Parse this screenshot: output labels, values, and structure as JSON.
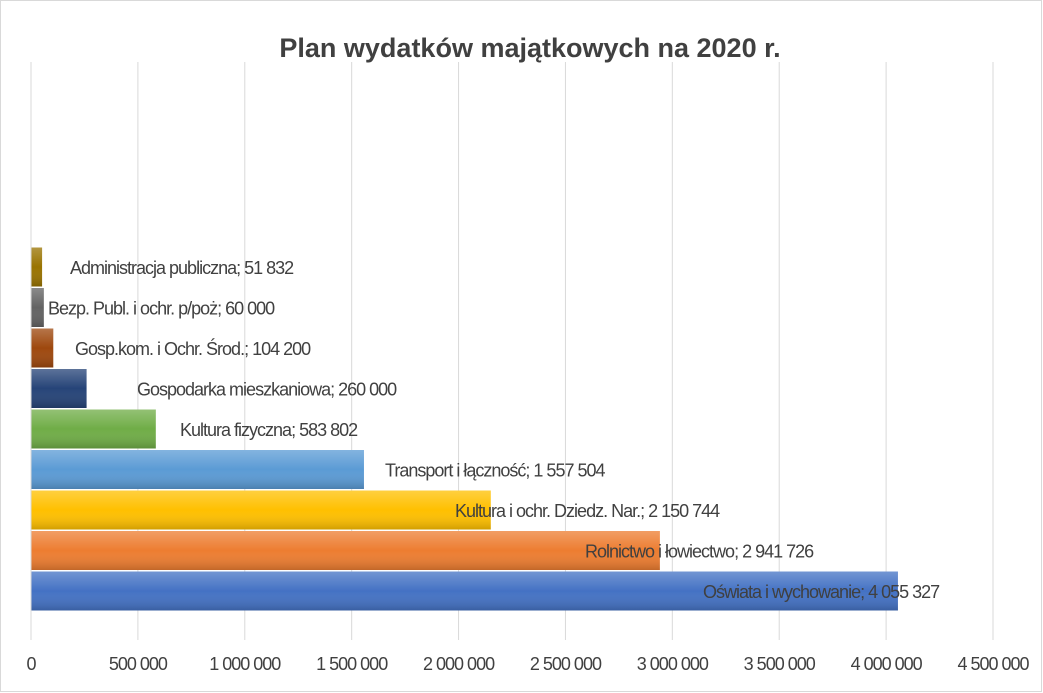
{
  "chart_data": {
    "type": "barh",
    "title": "Plan wydatków majątkowych  na 2020 r.",
    "categories": [
      "Oświata i wychowanie",
      "Rolnictwo i łowiectwo",
      "Kultura i ochr. Dziedz. Nar.",
      "Transport i łączność",
      "Kultura fizyczna",
      "Gospodarka mieszkaniowa",
      "Gosp.kom. i  Ochr. Środ.",
      "Bezp. Publ. i ochr. p/poż",
      "Administracja publiczna"
    ],
    "values": [
      4055327,
      2941726,
      2150744,
      1557504,
      583802,
      260000,
      104200,
      60000,
      51832
    ],
    "value_labels": [
      "4 055 327",
      "2 941 726",
      "2 150 744",
      "1 557 504",
      "583 802",
      "260 000",
      "104 200",
      "60 000",
      "51 832"
    ],
    "label_separator": "; ",
    "colors": [
      "#4472c4",
      "#ed7d31",
      "#ffc000",
      "#5b9bd5",
      "#70ad47",
      "#264478",
      "#9e480e",
      "#636363",
      "#997300"
    ],
    "xlim": [
      0,
      4500000
    ],
    "xticks": [
      0,
      {
        "value": 500000,
        "label": "500 000"
      },
      {
        "value": 1000000,
        "label": "1 000 000"
      },
      {
        "value": 1500000,
        "label": "1 500 000"
      },
      {
        "value": 2000000,
        "label": "2 000 000"
      },
      {
        "value": 2500000,
        "label": "2 500 000"
      },
      {
        "value": 3000000,
        "label": "3 000 000"
      },
      {
        "value": 3500000,
        "label": "3 500 000"
      },
      {
        "value": 4000000,
        "label": "4 000 000"
      },
      {
        "value": 4500000,
        "label": "4 500 000"
      }
    ],
    "grid": true
  }
}
